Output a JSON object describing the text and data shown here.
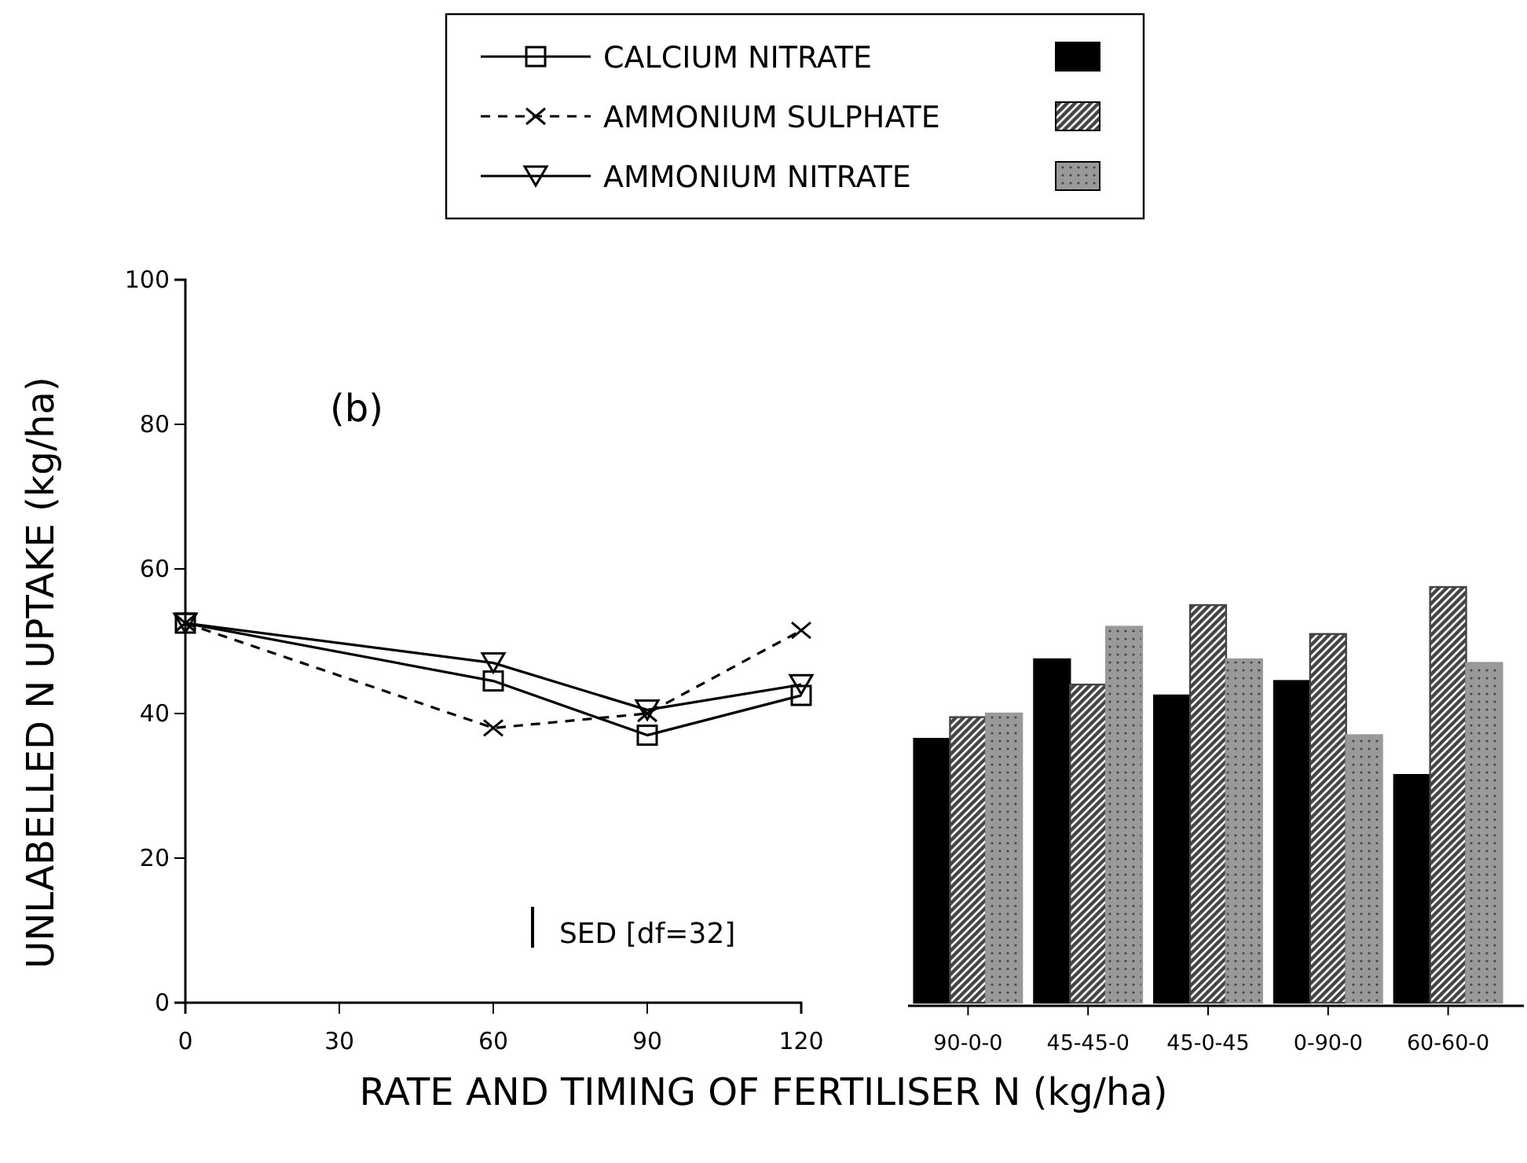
{
  "chart_data": [
    {
      "type": "line",
      "title": "(b)",
      "xlabel": "RATE AND TIMING OF FERTILISER N (kg/ha)",
      "ylabel": "UNLABELLED N UPTAKE (kg/ha)",
      "x": [
        0,
        60,
        90,
        120
      ],
      "xlim": [
        0,
        120
      ],
      "xticks": [
        0,
        30,
        60,
        90,
        120
      ],
      "ylim": [
        0,
        100
      ],
      "yticks": [
        0,
        20,
        40,
        60,
        80,
        100
      ],
      "legend": "top",
      "grid": false,
      "series": [
        {
          "name": "CALCIUM NITRATE",
          "color": "#000000",
          "marker": "square",
          "line_style": "solid",
          "values": [
            52.5,
            44.5,
            37,
            42.5
          ]
        },
        {
          "name": "AMMONIUM SULPHATE",
          "color": "#000000",
          "marker": "cross",
          "line_style": "dashed",
          "values": [
            52.5,
            38,
            40,
            51.5
          ]
        },
        {
          "name": "AMMONIUM NITRATE",
          "color": "#000000",
          "marker": "triangle",
          "line_style": "solid",
          "values": [
            52.5,
            47,
            40.5,
            44
          ]
        }
      ],
      "annotations": [
        "SED [df=32]"
      ]
    },
    {
      "type": "bar",
      "categories": [
        "90-0-0",
        "45-45-0",
        "45-0-45",
        "0-90-0",
        "60-60-0"
      ],
      "ylim": [
        0,
        100
      ],
      "tick_labels": "x",
      "series": [
        {
          "color": "#000000",
          "values": [
            36.5,
            47.5,
            42.5,
            44.5,
            31.5
          ]
        },
        {
          "color": "#444444",
          "values": [
            39.5,
            44,
            55,
            51,
            57.5
          ]
        },
        {
          "color": "#999999",
          "values": [
            40,
            52,
            47.5,
            37,
            47
          ]
        }
      ]
    }
  ]
}
